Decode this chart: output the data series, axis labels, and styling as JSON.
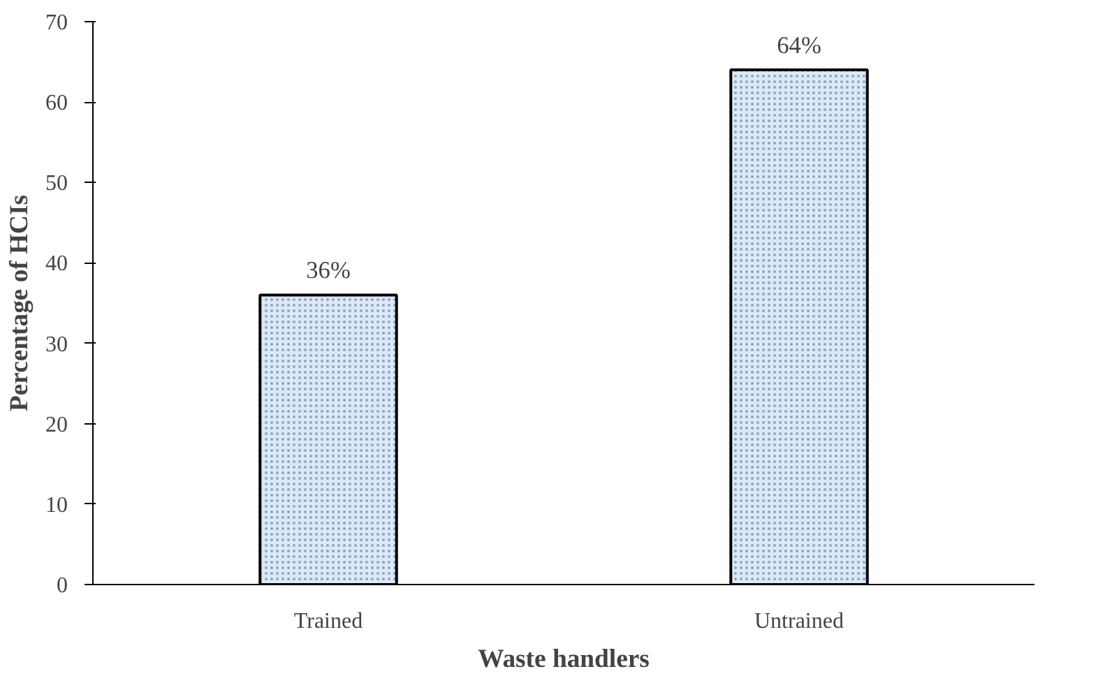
{
  "chart_data": {
    "type": "bar",
    "xlabel": "Waste handlers",
    "ylabel": "Percentage of HCIs",
    "categories": [
      "Trained",
      "Untrained"
    ],
    "values": [
      36,
      64
    ],
    "color": "#dbe9f6",
    "value_labels": [
      "36%",
      "64%"
    ],
    "ylim": [
      0,
      70
    ],
    "yticks": [
      0,
      10,
      20,
      30,
      40,
      50,
      60,
      70
    ],
    "grid": false
  }
}
